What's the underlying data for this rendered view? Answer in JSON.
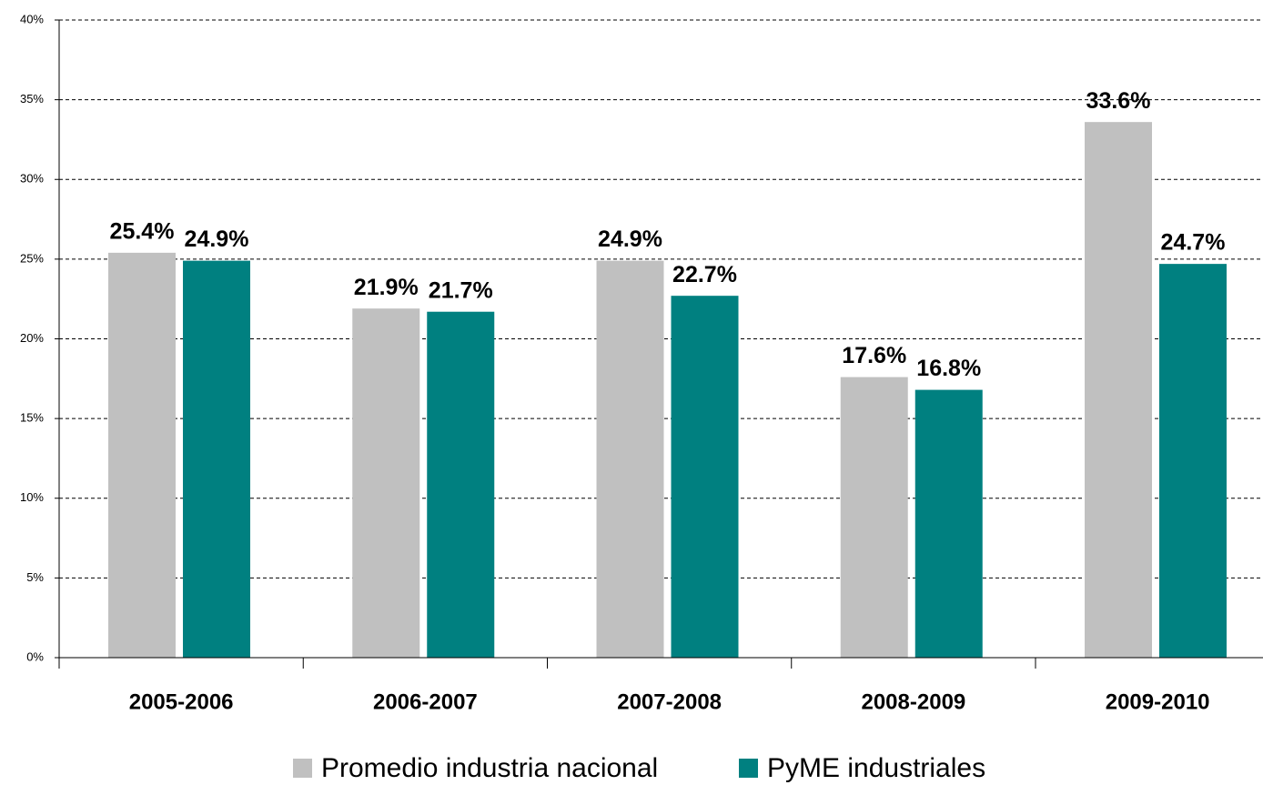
{
  "chart_data": {
    "type": "bar",
    "categories": [
      "2005-2006",
      "2006-2007",
      "2007-2008",
      "2008-2009",
      "2009-2010"
    ],
    "series": [
      {
        "name": "Promedio industria nacional",
        "color": "#c0c0c0",
        "values": [
          25.4,
          21.9,
          24.9,
          17.6,
          33.6
        ],
        "value_labels": [
          "25.4%",
          "21.9%",
          "24.9%",
          "17.6%",
          "33.6%"
        ]
      },
      {
        "name": "PyME industriales",
        "color": "#008080",
        "values": [
          24.9,
          21.7,
          22.7,
          16.8,
          24.7
        ],
        "value_labels": [
          "24.9%",
          "21.7%",
          "22.7%",
          "16.8%",
          "24.7%"
        ]
      }
    ],
    "ylim": [
      0,
      40
    ],
    "yticks": [
      {
        "value": 0,
        "label": "0%"
      },
      {
        "value": 5,
        "label": "5%"
      },
      {
        "value": 10,
        "label": "10%"
      },
      {
        "value": 15,
        "label": "15%"
      },
      {
        "value": 20,
        "label": "20%"
      },
      {
        "value": 25,
        "label": "25%"
      },
      {
        "value": 30,
        "label": "30%"
      },
      {
        "value": 35,
        "label": "35%"
      },
      {
        "value": 40,
        "label": "40%"
      }
    ],
    "grid": true,
    "legend": "bottom"
  }
}
